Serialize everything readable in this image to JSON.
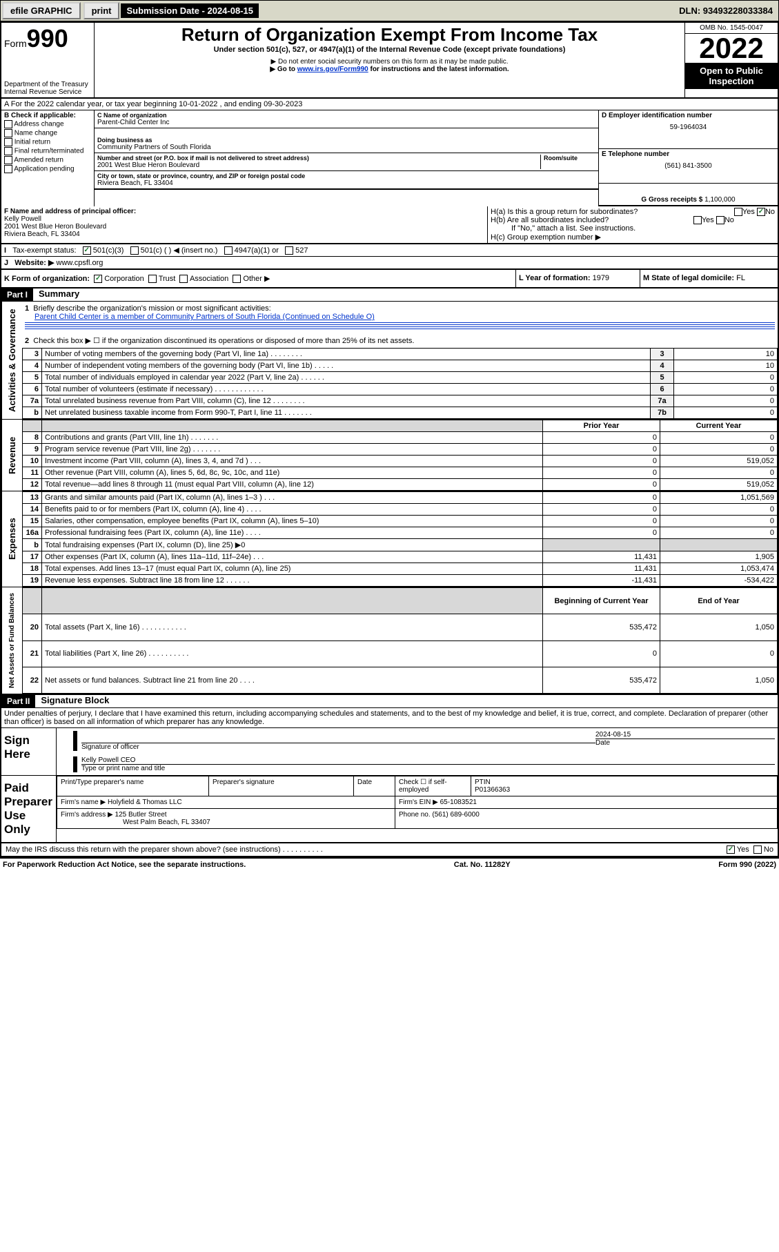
{
  "topbar": {
    "efile": "efile GRAPHIC",
    "print": "print",
    "subdate_label": "Submission Date - 2024-08-15",
    "dln": "DLN: 93493228033384"
  },
  "header": {
    "form_prefix": "Form",
    "form_num": "990",
    "dept": "Department of the Treasury",
    "irs": "Internal Revenue Service",
    "title": "Return of Organization Exempt From Income Tax",
    "subtitle": "Under section 501(c), 527, or 4947(a)(1) of the Internal Revenue Code (except private foundations)",
    "note1": "▶ Do not enter social security numbers on this form as it may be made public.",
    "note2_pre": "▶ Go to ",
    "note2_link": "www.irs.gov/Form990",
    "note2_post": " for instructions and the latest information.",
    "omb": "OMB No. 1545-0047",
    "year": "2022",
    "openpub": "Open to Public Inspection"
  },
  "rowA": {
    "text": "A For the 2022 calendar year, or tax year beginning 10-01-2022   , and ending 09-30-2023"
  },
  "B": {
    "label": "B Check if applicable:",
    "opts": [
      "Address change",
      "Name change",
      "Initial return",
      "Final return/terminated",
      "Amended return",
      "Application pending"
    ]
  },
  "C": {
    "name_label": "C Name of organization",
    "name": "Parent-Child Center Inc",
    "dba_label": "Doing business as",
    "dba": "Community Partners of South Florida",
    "addr_label": "Number and street (or P.O. box if mail is not delivered to street address)",
    "room_label": "Room/suite",
    "addr": "2001 West Blue Heron Boulevard",
    "city_label": "City or town, state or province, country, and ZIP or foreign postal code",
    "city": "Riviera Beach, FL  33404"
  },
  "D": {
    "label": "D Employer identification number",
    "val": "59-1964034"
  },
  "E": {
    "label": "E Telephone number",
    "val": "(561) 841-3500"
  },
  "G": {
    "label": "G Gross receipts $",
    "val": "1,100,000"
  },
  "F": {
    "label": "F Name and address of principal officer:",
    "name": "Kelly Powell",
    "addr1": "2001 West Blue Heron Boulevard",
    "addr2": "Riviera Beach, FL  33404"
  },
  "H": {
    "a": "H(a)  Is this a group return for subordinates?",
    "b": "H(b)  Are all subordinates included?",
    "bnote": "If \"No,\" attach a list. See instructions.",
    "c": "H(c)  Group exemption number ▶"
  },
  "I": {
    "label": "Tax-exempt status:",
    "opts": [
      "501(c)(3)",
      "501(c) (  ) ◀ (insert no.)",
      "4947(a)(1) or",
      "527"
    ]
  },
  "J": {
    "label": "Website: ▶",
    "val": "www.cpsfl.org"
  },
  "K": {
    "label": "K Form of organization:",
    "opts": [
      "Corporation",
      "Trust",
      "Association",
      "Other ▶"
    ]
  },
  "L": {
    "label": "L Year of formation:",
    "val": "1979"
  },
  "M": {
    "label": "M State of legal domicile:",
    "val": "FL"
  },
  "part1": {
    "hdr": "Part I",
    "title": "Summary",
    "q1": "Briefly describe the organization's mission or most significant activities:",
    "mission": "Parent Child Center is a member of Community Partners of South Florida (Continued on Schedule O)",
    "q2": "Check this box ▶ ☐  if the organization discontinued its operations or disposed of more than 25% of its net assets.",
    "vtab_ag": "Activities & Governance",
    "vtab_rev": "Revenue",
    "vtab_exp": "Expenses",
    "vtab_na": "Net Assets or Fund Balances",
    "rows_gov": [
      {
        "n": "3",
        "d": "Number of voting members of the governing body (Part VI, line 1a)  .    .    .    .    .    .    .    .",
        "box": "3",
        "v": "10"
      },
      {
        "n": "4",
        "d": "Number of independent voting members of the governing body (Part VI, line 1b)  .    .    .    .    .",
        "box": "4",
        "v": "10"
      },
      {
        "n": "5",
        "d": "Total number of individuals employed in calendar year 2022 (Part V, line 2a)  .    .    .    .    .    .",
        "box": "5",
        "v": "0"
      },
      {
        "n": "6",
        "d": "Total number of volunteers (estimate if necessary)  .    .    .    .    .    .    .    .    .    .    .    .",
        "box": "6",
        "v": "0"
      },
      {
        "n": "7a",
        "d": "Total unrelated business revenue from Part VIII, column (C), line 12  .    .    .    .    .    .    .    .",
        "box": "7a",
        "v": "0"
      },
      {
        "n": "b",
        "d": "Net unrelated business taxable income from Form 990-T, Part I, line 11  .    .    .    .    .    .    .",
        "box": "7b",
        "v": "0"
      }
    ],
    "col_prior": "Prior Year",
    "col_curr": "Current Year",
    "rows_rev": [
      {
        "n": "8",
        "d": "Contributions and grants (Part VIII, line 1h)  .    .    .    .    .    .    .",
        "p": "0",
        "c": "0"
      },
      {
        "n": "9",
        "d": "Program service revenue (Part VIII, line 2g)  .    .    .    .    .    .    .",
        "p": "0",
        "c": "0"
      },
      {
        "n": "10",
        "d": "Investment income (Part VIII, column (A), lines 3, 4, and 7d )  .    .    .",
        "p": "0",
        "c": "519,052"
      },
      {
        "n": "11",
        "d": "Other revenue (Part VIII, column (A), lines 5, 6d, 8c, 9c, 10c, and 11e)",
        "p": "0",
        "c": "0"
      },
      {
        "n": "12",
        "d": "Total revenue—add lines 8 through 11 (must equal Part VIII, column (A), line 12)",
        "p": "0",
        "c": "519,052"
      }
    ],
    "rows_exp": [
      {
        "n": "13",
        "d": "Grants and similar amounts paid (Part IX, column (A), lines 1–3 )  .    .    .",
        "p": "0",
        "c": "1,051,569"
      },
      {
        "n": "14",
        "d": "Benefits paid to or for members (Part IX, column (A), line 4)  .    .    .    .",
        "p": "0",
        "c": "0"
      },
      {
        "n": "15",
        "d": "Salaries, other compensation, employee benefits (Part IX, column (A), lines 5–10)",
        "p": "0",
        "c": "0"
      },
      {
        "n": "16a",
        "d": "Professional fundraising fees (Part IX, column (A), line 11e)  .    .    .    .",
        "p": "0",
        "c": "0"
      },
      {
        "n": "b",
        "d": "Total fundraising expenses (Part IX, column (D), line 25) ▶0",
        "p": "",
        "c": "",
        "shade": true
      },
      {
        "n": "17",
        "d": "Other expenses (Part IX, column (A), lines 11a–11d, 11f–24e)  .    .    .",
        "p": "11,431",
        "c": "1,905"
      },
      {
        "n": "18",
        "d": "Total expenses. Add lines 13–17 (must equal Part IX, column (A), line 25)",
        "p": "11,431",
        "c": "1,053,474"
      },
      {
        "n": "19",
        "d": "Revenue less expenses. Subtract line 18 from line 12  .    .    .    .    .    .",
        "p": "-11,431",
        "c": "-534,422"
      }
    ],
    "col_beg": "Beginning of Current Year",
    "col_end": "End of Year",
    "rows_na": [
      {
        "n": "20",
        "d": "Total assets (Part X, line 16)  .    .    .    .    .    .    .    .    .    .    .",
        "p": "535,472",
        "c": "1,050"
      },
      {
        "n": "21",
        "d": "Total liabilities (Part X, line 26)  .    .    .    .    .    .    .    .    .    .",
        "p": "0",
        "c": "0"
      },
      {
        "n": "22",
        "d": "Net assets or fund balances. Subtract line 21 from line 20  .    .    .    .",
        "p": "535,472",
        "c": "1,050"
      }
    ]
  },
  "part2": {
    "hdr": "Part II",
    "title": "Signature Block",
    "decl": "Under penalties of perjury, I declare that I have examined this return, including accompanying schedules and statements, and to the best of my knowledge and belief, it is true, correct, and complete. Declaration of preparer (other than officer) is based on all information of which preparer has any knowledge.",
    "sign_here": "Sign Here",
    "sig_officer": "Signature of officer",
    "date_lbl": "Date",
    "date_val": "2024-08-15",
    "name_title": "Kelly Powell CEO",
    "type_name": "Type or print name and title",
    "paid": "Paid Preparer Use Only",
    "prep_name": "Print/Type preparer's name",
    "prep_sig": "Preparer's signature",
    "prep_date": "Date",
    "self_emp": "Check ☐ if self-employed",
    "ptin_lbl": "PTIN",
    "ptin": "P01366363",
    "firm_name_lbl": "Firm's name    ▶",
    "firm_name": "Holyfield & Thomas LLC",
    "firm_ein_lbl": "Firm's EIN ▶",
    "firm_ein": "65-1083521",
    "firm_addr_lbl": "Firm's address ▶",
    "firm_addr1": "125 Butler Street",
    "firm_addr2": "West Palm Beach, FL  33407",
    "phone_lbl": "Phone no.",
    "phone": "(561) 689-6000",
    "discuss": "May the IRS discuss this return with the preparer shown above? (see instructions)  .    .    .    .    .    .    .    .    .    ."
  },
  "footer": {
    "pra": "For Paperwork Reduction Act Notice, see the separate instructions.",
    "cat": "Cat. No. 11282Y",
    "form": "Form 990 (2022)"
  },
  "colors": {
    "topbar_bg": "#d8d8c8",
    "link": "#0033cc",
    "check_green": "#1a7a2e"
  }
}
